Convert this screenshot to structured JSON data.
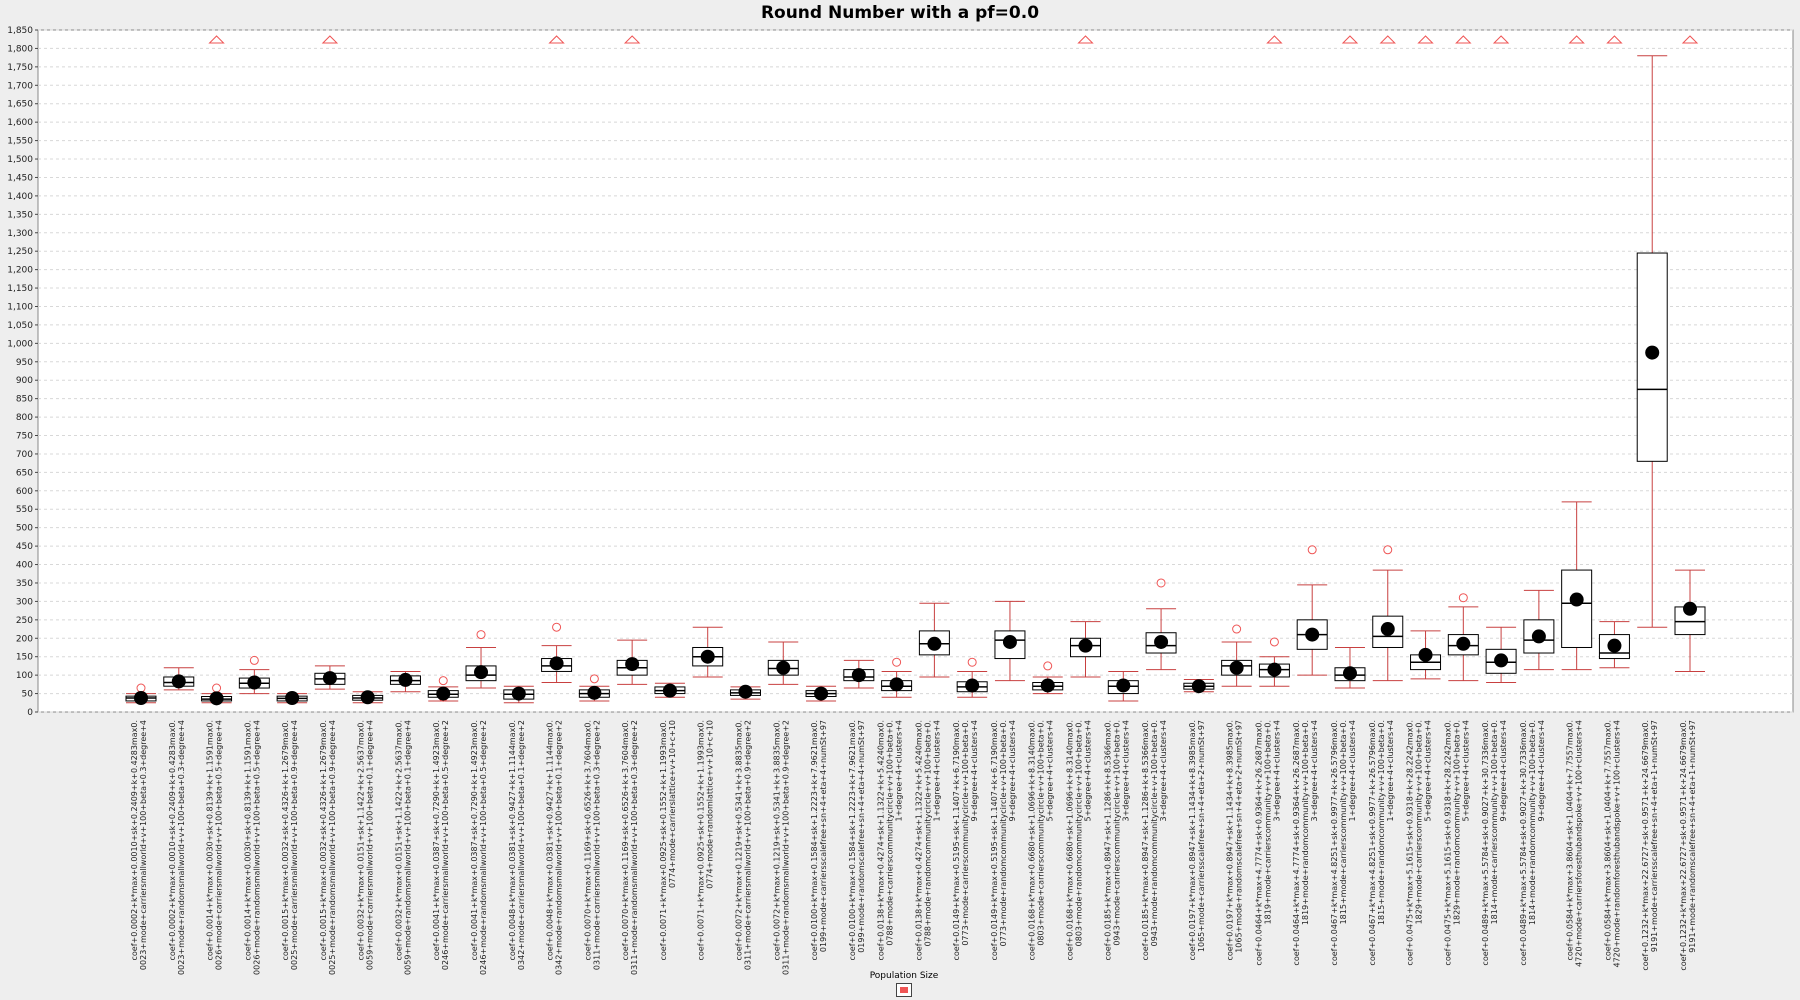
{
  "chart_data": {
    "type": "boxplot",
    "title": "Round Number with a pf=0.0",
    "ylim": [
      0,
      1850
    ],
    "y_ticks": [
      0,
      50,
      100,
      150,
      200,
      250,
      300,
      350,
      400,
      450,
      500,
      550,
      600,
      650,
      700,
      750,
      800,
      850,
      900,
      950,
      1000,
      1050,
      1100,
      1150,
      1200,
      1250,
      1300,
      1350,
      1400,
      1450,
      1500,
      1550,
      1600,
      1650,
      1700,
      1750,
      1800,
      1850
    ],
    "y_tick_labels": [
      "0",
      "50",
      "100",
      "150",
      "200",
      "250",
      "300",
      "350",
      "400",
      "450",
      "500",
      "550",
      "600",
      "650",
      "700",
      "750",
      "800",
      "850",
      "900",
      "950",
      "1,000",
      "1,050",
      "1,100",
      "1,150",
      "1,200",
      "1,250",
      "1,300",
      "1,350",
      "1,400",
      "1,450",
      "1,500",
      "1,550",
      "1,600",
      "1,650",
      "1,700",
      "1,750",
      "1,800",
      "1,850"
    ],
    "legend": {
      "title": "Population Size",
      "position": "bottom-center",
      "color": "#ef5555"
    },
    "grid": true,
    "colors": {
      "whisker": "#c84040",
      "box": "#000000",
      "mean": "#000000",
      "outlier": "#ef5555",
      "background": "#ffffff"
    },
    "boxes": [
      {
        "label": [
          "coef+0.0002+k*max+0.0010+sk+0.2409+k+0.4283max0.",
          "0023+mode+carriersmallworld+v+100+beta+0.3+degree+4"
        ],
        "min": 25,
        "q1": 30,
        "median": 38,
        "q3": 43,
        "max": 50,
        "mean": 38,
        "outliers": [
          65
        ],
        "far_outlier": false
      },
      {
        "label": [
          "coef+0.0002+k*max+0.0010+sk+0.2409+k+0.4283max0.",
          "0023+mode+randomsmallworld+v+100+beta+0.3+degree+4"
        ],
        "min": 60,
        "q1": 70,
        "median": 80,
        "q3": 95,
        "max": 120,
        "mean": 83,
        "outliers": [],
        "far_outlier": false
      },
      {
        "label": [
          "coef+0.0014+k*max+0.0030+sk+0.8139+k+1.1591max0.",
          "0026+mode+carriersmallworld+v+100+beta+0.5+degree+4"
        ],
        "min": 25,
        "q1": 30,
        "median": 35,
        "q3": 42,
        "max": 50,
        "mean": 37,
        "outliers": [
          65
        ],
        "far_outlier": true
      },
      {
        "label": [
          "coef+0.0014+k*max+0.0030+sk+0.8139+k+1.1591max0.",
          "0026+mode+randomsmallworld+v+100+beta+0.5+degree+4"
        ],
        "min": 50,
        "q1": 65,
        "median": 78,
        "q3": 92,
        "max": 115,
        "mean": 80,
        "outliers": [
          140
        ],
        "far_outlier": false
      },
      {
        "label": [
          "coef+0.0015+k*max+0.0032+sk+0.4326+k+1.2679max0.",
          "0025+mode+carriersmallworld+v+100+beta+0.9+degree+4"
        ],
        "min": 25,
        "q1": 30,
        "median": 37,
        "q3": 43,
        "max": 50,
        "mean": 38,
        "outliers": [],
        "far_outlier": false
      },
      {
        "label": [
          "coef+0.0015+k*max+0.0032+sk+0.4326+k+1.2679max0.",
          "0025+mode+randomsmallworld+v+100+beta+0.9+degree+4"
        ],
        "min": 62,
        "q1": 75,
        "median": 90,
        "q3": 105,
        "max": 125,
        "mean": 92,
        "outliers": [],
        "far_outlier": true
      },
      {
        "label": [
          "coef+0.0032+k*max+0.0151+sk+1.1422+k+2.5637max0.",
          "0059+mode+carriersmallworld+v+100+beta+0.1+degree+4"
        ],
        "min": 25,
        "q1": 32,
        "median": 38,
        "q3": 45,
        "max": 55,
        "mean": 40,
        "outliers": [],
        "far_outlier": false
      },
      {
        "label": [
          "coef+0.0032+k*max+0.0151+sk+1.1422+k+2.5637max0.",
          "0059+mode+randomsmallworld+v+100+beta+0.1+degree+4"
        ],
        "min": 55,
        "q1": 75,
        "median": 85,
        "q3": 98,
        "max": 110,
        "mean": 87,
        "outliers": [],
        "far_outlier": false
      },
      {
        "label": [
          "coef+0.0041+k*max+0.0387+sk+0.7290+k+1.4923max0.",
          "0246+mode+carriersmallworld+v+100+beta+0.5+degree+2"
        ],
        "min": 30,
        "q1": 40,
        "median": 48,
        "q3": 58,
        "max": 68,
        "mean": 50,
        "outliers": [
          85,
          40
        ],
        "far_outlier": false
      },
      {
        "label": [
          "coef+0.0041+k*max+0.0387+sk+0.7290+k+1.4923max0.",
          "0246+mode+randomsmallworld+v+100+beta+0.5+degree+2"
        ],
        "min": 65,
        "q1": 85,
        "median": 100,
        "q3": 125,
        "max": 175,
        "mean": 108,
        "outliers": [
          210
        ],
        "far_outlier": false
      },
      {
        "label": [
          "coef+0.0048+k*max+0.0381+sk+0.9427+k+1.1144max0.",
          "0342+mode+carriersmallworld+v+100+beta+0.1+degree+2"
        ],
        "min": 25,
        "q1": 35,
        "median": 48,
        "q3": 60,
        "max": 70,
        "mean": 50,
        "outliers": [],
        "far_outlier": false
      },
      {
        "label": [
          "coef+0.0048+k*max+0.0381+sk+0.9427+k+1.1144max0.",
          "0342+mode+randomsmallworld+v+100+beta+0.1+degree+2"
        ],
        "min": 80,
        "q1": 110,
        "median": 125,
        "q3": 145,
        "max": 180,
        "mean": 132,
        "outliers": [
          230
        ],
        "far_outlier": true
      },
      {
        "label": [
          "coef+0.0070+k*max+0.1169+sk+0.6526+k+3.7604max0.",
          "0311+mode+carriersmallworld+v+100+beta+0.3+degree+2"
        ],
        "min": 30,
        "q1": 40,
        "median": 50,
        "q3": 60,
        "max": 70,
        "mean": 52,
        "outliers": [
          90
        ],
        "far_outlier": false
      },
      {
        "label": [
          "coef+0.0070+k*max+0.1169+sk+0.6526+k+3.7604max0.",
          "0311+mode+randomsmallworld+v+100+beta+0.3+degree+2"
        ],
        "min": 75,
        "q1": 100,
        "median": 120,
        "q3": 140,
        "max": 195,
        "mean": 130,
        "outliers": [],
        "far_outlier": true
      },
      {
        "label": [
          "coef+0.0071+k*max+0.0925+sk+0.1552+k+1.1993max0.",
          "0774+mode+carrierslattice+v+10+c+10"
        ],
        "min": 40,
        "q1": 50,
        "median": 58,
        "q3": 68,
        "max": 78,
        "mean": 58,
        "outliers": [],
        "far_outlier": false
      },
      {
        "label": [
          "coef+0.0071+k*max+0.0925+sk+0.1552+k+1.1993max0.",
          "0774+mode+randomlattice+v+10+c+10"
        ],
        "min": 95,
        "q1": 125,
        "median": 150,
        "q3": 175,
        "max": 230,
        "mean": 150,
        "outliers": [],
        "far_outlier": false
      },
      {
        "label": [
          "coef+0.0072+k*max+0.1219+sk+0.5341+k+3.8835max0.",
          "0311+mode+carriersmallworld+v+100+beta+0.9+degree+2"
        ],
        "min": 35,
        "q1": 45,
        "median": 52,
        "q3": 60,
        "max": 68,
        "mean": 55,
        "outliers": [],
        "far_outlier": false
      },
      {
        "label": [
          "coef+0.0072+k*max+0.1219+sk+0.5341+k+3.8835max0.",
          "0311+mode+randomsmallworld+v+100+beta+0.9+degree+2"
        ],
        "min": 75,
        "q1": 100,
        "median": 118,
        "q3": 140,
        "max": 190,
        "mean": 120,
        "outliers": [],
        "far_outlier": false
      },
      {
        "label": [
          "coef+0.0100+k*max+0.1584+sk+1.2223+k+7.9621max0.",
          "0199+mode+carriersscalefree+sn+4+eta+4+numSt+97"
        ],
        "min": 30,
        "q1": 42,
        "median": 50,
        "q3": 58,
        "max": 70,
        "mean": 50,
        "outliers": [],
        "far_outlier": false
      },
      {
        "label": [
          "coef+0.0100+k*max+0.1584+sk+1.2223+k+7.9621max0.",
          "0199+mode+randomscalefree+sn+4+eta+4+numSt+97"
        ],
        "min": 65,
        "q1": 85,
        "median": 95,
        "q3": 115,
        "max": 140,
        "mean": 100,
        "outliers": [],
        "far_outlier": false
      },
      {
        "label": [
          "coef+0.0138+k*max+0.4274+sk+1.1322+k+5.4240max0.",
          "0788+mode+carrierscommunitycircle+v+100+beta+0.",
          "1+degree+4+clusters+4"
        ],
        "min": 40,
        "q1": 58,
        "median": 70,
        "q3": 85,
        "max": 110,
        "mean": 75,
        "outliers": [
          135
        ],
        "far_outlier": false
      },
      {
        "label": [
          "coef+0.0138+k*max+0.4274+sk+1.1322+k+5.4240max0.",
          "0788+mode+randomcommunitycircle+v+100+beta+0.",
          "1+degree+4+clusters+4"
        ],
        "min": 95,
        "q1": 155,
        "median": 185,
        "q3": 220,
        "max": 295,
        "mean": 185,
        "outliers": [],
        "far_outlier": false
      },
      {
        "label": [
          "coef+0.0149+k*max+0.5195+sk+1.1407+k+6.7190max0.",
          "0773+mode+carrierscommunitycircle+v+100+beta+0.",
          "9+degree+4+clusters+4"
        ],
        "min": 40,
        "q1": 55,
        "median": 68,
        "q3": 82,
        "max": 110,
        "mean": 72,
        "outliers": [
          135
        ],
        "far_outlier": false
      },
      {
        "label": [
          "coef+0.0149+k*max+0.5195+sk+1.1407+k+6.7190max0.",
          "0773+mode+randomcommunitycircle+v+100+beta+0.",
          "9+degree+4+clusters+4"
        ],
        "min": 85,
        "q1": 145,
        "median": 195,
        "q3": 220,
        "max": 300,
        "mean": 190,
        "outliers": [],
        "far_outlier": false
      },
      {
        "label": [
          "coef+0.0168+k*max+0.6680+sk+1.0696+k+8.3140max0.",
          "0803+mode+carrierscommunitycircle+v+100+beta+0.",
          "5+degree+4+clusters+4"
        ],
        "min": 50,
        "q1": 60,
        "median": 70,
        "q3": 80,
        "max": 95,
        "mean": 72,
        "outliers": [
          125
        ],
        "far_outlier": false
      },
      {
        "label": [
          "coef+0.0168+k*max+0.6680+sk+1.0696+k+8.3140max0.",
          "0803+mode+randomcommunitycircle+v+100+beta+0.",
          "5+degree+4+clusters+4"
        ],
        "min": 95,
        "q1": 150,
        "median": 180,
        "q3": 200,
        "max": 245,
        "mean": 180,
        "outliers": [],
        "far_outlier": true
      },
      {
        "label": [
          "coef+0.0185+k*max+0.8947+sk+1.1286+k+8.5366max0.",
          "0943+mode+carrierscommunitycircle+v+100+beta+0.",
          "3+degree+4+clusters+4"
        ],
        "min": 30,
        "q1": 50,
        "median": 70,
        "q3": 85,
        "max": 110,
        "mean": 72,
        "outliers": [],
        "far_outlier": false
      },
      {
        "label": [
          "coef+0.0185+k*max+0.8947+sk+1.1286+k+8.5366max0.",
          "0943+mode+randomcommunitycircle+v+100+beta+0.",
          "3+degree+4+clusters+4"
        ],
        "min": 115,
        "q1": 160,
        "median": 180,
        "q3": 215,
        "max": 280,
        "mean": 190,
        "outliers": [
          350
        ],
        "far_outlier": false
      },
      {
        "label": [
          "coef+0.0197+k*max+0.8947+sk+1.1434+k+8.3985max0.",
          "1065+mode+carriersscalefree+sn+4+eta+2+numSt+97"
        ],
        "min": 55,
        "q1": 62,
        "median": 70,
        "q3": 78,
        "max": 88,
        "mean": 70,
        "outliers": [],
        "far_outlier": false
      },
      {
        "label": [
          "coef+0.0197+k*max+0.8947+sk+1.1434+k+8.3985max0.",
          "1065+mode+randomscalefree+sn+4+eta+2+numSt+97"
        ],
        "min": 70,
        "q1": 100,
        "median": 125,
        "q3": 140,
        "max": 190,
        "mean": 120,
        "outliers": [
          225
        ],
        "far_outlier": false
      },
      {
        "label": [
          "coef+0.0464+k*max+4.7774+sk+0.9364+k+26.2687max0.",
          "1819+mode+carrierscommunity+v+100+beta+0.",
          "3+degree+4+clusters+4"
        ],
        "min": 70,
        "q1": 95,
        "median": 115,
        "q3": 130,
        "max": 150,
        "mean": 115,
        "outliers": [
          190
        ],
        "far_outlier": true
      },
      {
        "label": [
          "coef+0.0464+k*max+4.7774+sk+0.9364+k+26.2687max0.",
          "1819+mode+randomcommunity+v+100+beta+0.",
          "3+degree+4+clusters+4"
        ],
        "min": 100,
        "q1": 170,
        "median": 210,
        "q3": 250,
        "max": 345,
        "mean": 210,
        "outliers": [
          440
        ],
        "far_outlier": false
      },
      {
        "label": [
          "coef+0.0467+k*max+4.8251+sk+0.9977+k+26.5796max0.",
          "1815+mode+carrierscommunity+v+100+beta+0.",
          "1+degree+4+clusters+4"
        ],
        "min": 65,
        "q1": 85,
        "median": 100,
        "q3": 120,
        "max": 175,
        "mean": 105,
        "outliers": [],
        "far_outlier": true
      },
      {
        "label": [
          "coef+0.0467+k*max+4.8251+sk+0.9977+k+26.5796max0.",
          "1815+mode+randomcommunity+v+100+beta+0.",
          "1+degree+4+clusters+4"
        ],
        "min": 85,
        "q1": 175,
        "median": 205,
        "q3": 260,
        "max": 385,
        "mean": 225,
        "outliers": [
          440
        ],
        "far_outlier": true
      },
      {
        "label": [
          "coef+0.0475+k*max+5.1615+sk+0.9318+k+28.2242max0.",
          "1829+mode+carrierscommunity+v+100+beta+0.",
          "5+degree+4+clusters+4"
        ],
        "min": 90,
        "q1": 115,
        "median": 135,
        "q3": 155,
        "max": 220,
        "mean": 155,
        "outliers": [],
        "far_outlier": true
      },
      {
        "label": [
          "coef+0.0475+k*max+5.1615+sk+0.9318+k+28.2242max0.",
          "1829+mode+randomcommunity+v+100+beta+0.",
          "5+degree+4+clusters+4"
        ],
        "min": 85,
        "q1": 155,
        "median": 180,
        "q3": 210,
        "max": 285,
        "mean": 185,
        "outliers": [
          310
        ],
        "far_outlier": true
      },
      {
        "label": [
          "coef+0.0489+k*max+5.5784+sk+0.9027+k+30.7336max0.",
          "1814+mode+carrierscommunity+v+100+beta+0.",
          "9+degree+4+clusters+4"
        ],
        "min": 80,
        "q1": 105,
        "median": 135,
        "q3": 170,
        "max": 230,
        "mean": 140,
        "outliers": [],
        "far_outlier": true
      },
      {
        "label": [
          "coef+0.0489+k*max+5.5784+sk+0.9027+k+30.7336max0.",
          "1814+mode+randomcommunity+v+100+beta+0.",
          "9+degree+4+clusters+4"
        ],
        "min": 115,
        "q1": 160,
        "median": 195,
        "q3": 250,
        "max": 330,
        "mean": 205,
        "outliers": [],
        "far_outlier": false
      },
      {
        "label": [
          "coef+0.0584+k*max+3.8604+sk+1.0404+k+7.7557max0.",
          "4720+mode+carriersforesthubandspoke+v+100+clusters+4"
        ],
        "min": 115,
        "q1": 175,
        "median": 295,
        "q3": 385,
        "max": 570,
        "mean": 305,
        "outliers": [],
        "far_outlier": true
      },
      {
        "label": [
          "coef+0.0584+k*max+3.8604+sk+1.0404+k+7.7557max0.",
          "4720+mode+randomforesthubandspoke+v+100+clusters+4"
        ],
        "min": 120,
        "q1": 145,
        "median": 160,
        "q3": 210,
        "max": 245,
        "mean": 180,
        "outliers": [],
        "far_outlier": true
      },
      {
        "label": [
          "coef+0.1232+k*max+22.6727+sk+0.9571+k+24.6679max0.",
          "9191+mode+carriersscalefree+sn+4+eta+1+numSt+97"
        ],
        "min": 230,
        "q1": 680,
        "median": 875,
        "q3": 1245,
        "max": 1780,
        "mean": 975,
        "outliers": [],
        "far_outlier": false
      },
      {
        "label": [
          "coef+0.1232+k*max+22.6727+sk+0.9571+k+24.6679max0.",
          "9191+mode+randomscalefree+sn+4+eta+1+numSt+97"
        ],
        "min": 110,
        "q1": 210,
        "median": 245,
        "q3": 285,
        "max": 385,
        "mean": 280,
        "outliers": [],
        "far_outlier": true
      }
    ]
  }
}
